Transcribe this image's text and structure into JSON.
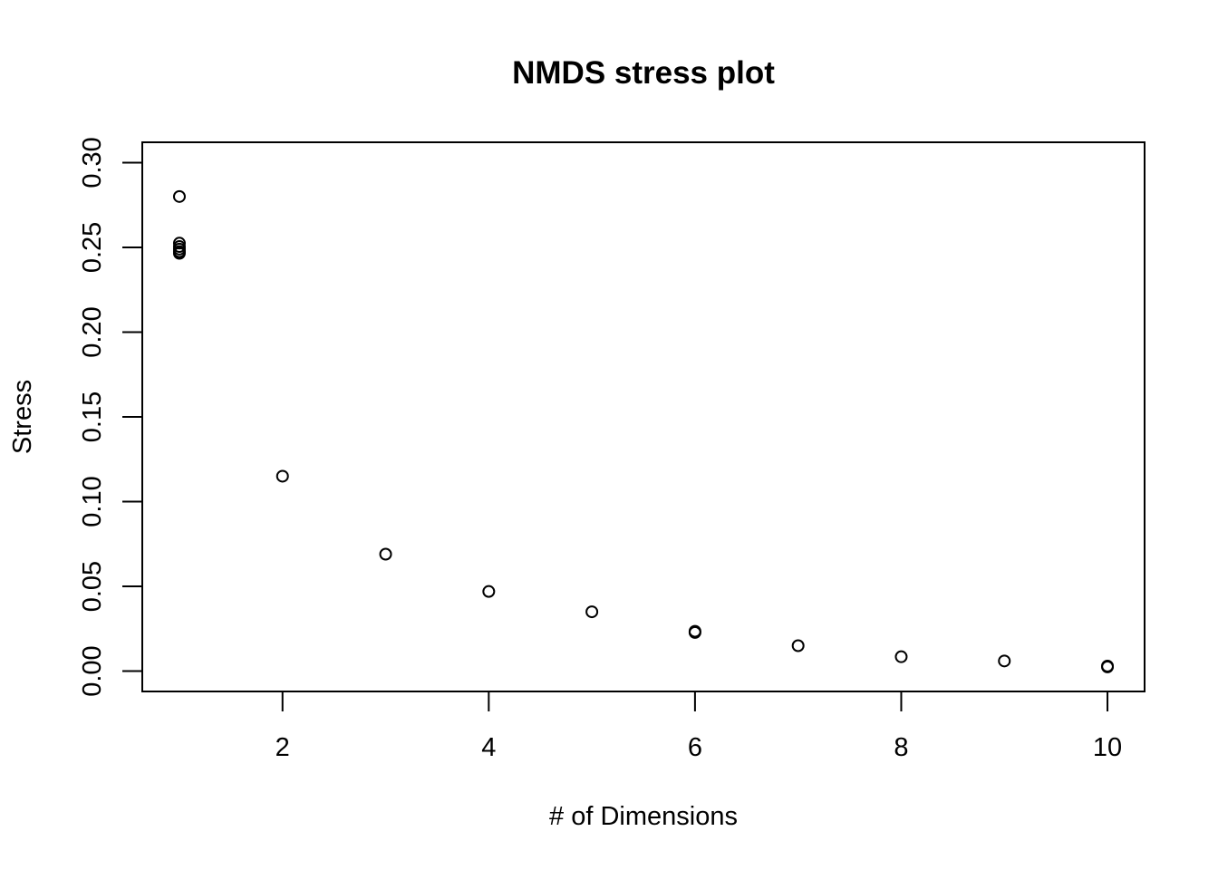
{
  "chart_data": {
    "type": "scatter",
    "title": "NMDS stress plot",
    "xlabel": "# of Dimensions",
    "ylabel": "Stress",
    "xlim": [
      0.64,
      10.36
    ],
    "ylim": [
      -0.012,
      0.312
    ],
    "x_ticks": [
      2,
      4,
      6,
      8,
      10
    ],
    "x_tick_labels": [
      "2",
      "4",
      "6",
      "8",
      "10"
    ],
    "y_ticks": [
      0.0,
      0.05,
      0.1,
      0.15,
      0.2,
      0.25,
      0.3
    ],
    "y_tick_labels": [
      "0.00",
      "0.05",
      "0.10",
      "0.15",
      "0.20",
      "0.25",
      "0.30"
    ],
    "grid": false,
    "marker": "open-circle",
    "points": [
      {
        "x": 1,
        "y": 0.28
      },
      {
        "x": 1,
        "y": 0.2525
      },
      {
        "x": 1,
        "y": 0.2505
      },
      {
        "x": 1,
        "y": 0.249
      },
      {
        "x": 1,
        "y": 0.2475
      },
      {
        "x": 1,
        "y": 0.2465
      },
      {
        "x": 2,
        "y": 0.115
      },
      {
        "x": 3,
        "y": 0.069
      },
      {
        "x": 4,
        "y": 0.047
      },
      {
        "x": 5,
        "y": 0.035
      },
      {
        "x": 6,
        "y": 0.0235
      },
      {
        "x": 6,
        "y": 0.0228
      },
      {
        "x": 7,
        "y": 0.015
      },
      {
        "x": 8,
        "y": 0.0085
      },
      {
        "x": 9,
        "y": 0.006
      },
      {
        "x": 10,
        "y": 0.003
      },
      {
        "x": 10,
        "y": 0.0025
      }
    ]
  }
}
